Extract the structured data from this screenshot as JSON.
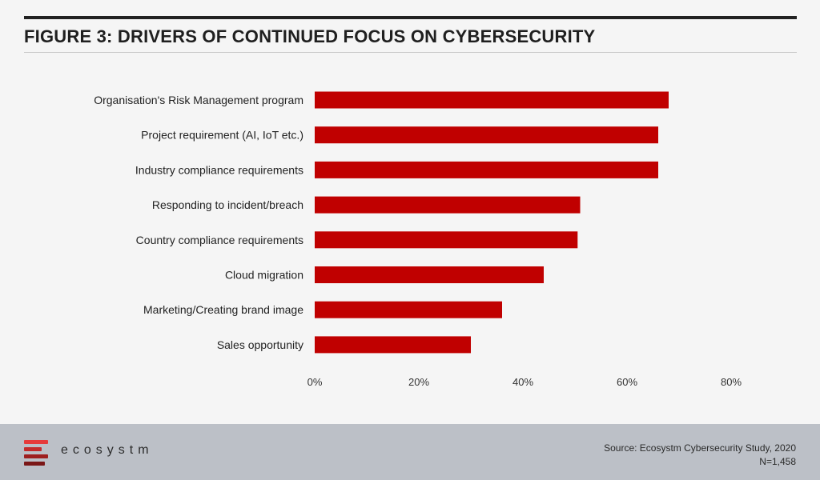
{
  "header": {
    "title": "FIGURE 3: DRIVERS OF CONTINUED FOCUS ON CYBERSECURITY"
  },
  "footer": {
    "brand": "ecosystm",
    "source": "Source: Ecosystm Cybersecurity Study, 2020",
    "sample": "N=1,458"
  },
  "colors": {
    "bar": "#c00000",
    "logo": [
      "#e63a3a",
      "#c42b2b",
      "#9e1f1f",
      "#7a1717"
    ]
  },
  "chart_data": {
    "type": "bar",
    "orientation": "horizontal",
    "title": "FIGURE 3: DRIVERS OF CONTINUED FOCUS ON CYBERSECURITY",
    "categories": [
      "Organisation's Risk Management program",
      "Project requirement (AI, IoT etc.)",
      "Industry compliance requirements",
      "Responding to incident/breach",
      "Country compliance requirements",
      "Cloud migration",
      "Marketing/Creating brand image",
      "Sales opportunity"
    ],
    "values": [
      68,
      66,
      66,
      51,
      50.5,
      44,
      36,
      30
    ],
    "xlim": [
      0,
      80
    ],
    "xticks": [
      0,
      20,
      40,
      60,
      80
    ],
    "xtick_labels": [
      "0%",
      "20%",
      "40%",
      "60%",
      "80%"
    ],
    "grid": false,
    "legend": "none"
  }
}
